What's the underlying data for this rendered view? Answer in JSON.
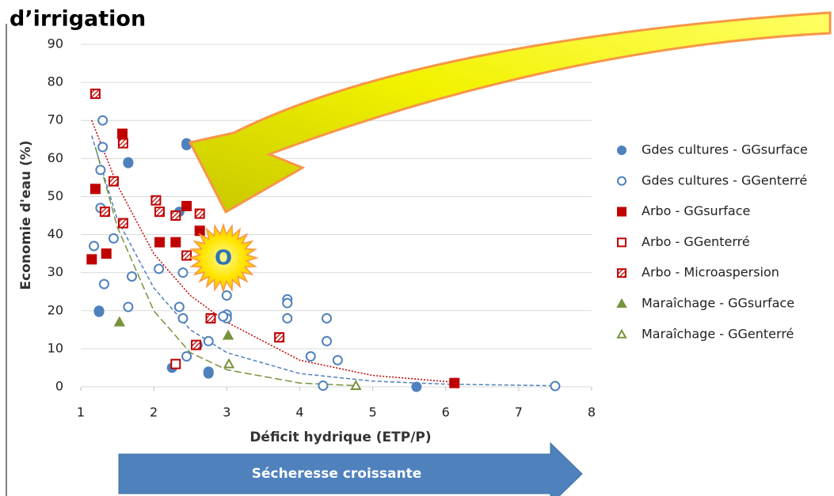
{
  "chart_data": {
    "type": "scatter",
    "title": "d’irrigation",
    "xlabel": "Déficit hydrique  (ETP/P)",
    "ylabel": "Economie d'eau (%)",
    "xlim": [
      1,
      8
    ],
    "ylim": [
      0,
      90
    ],
    "xticks": [
      1,
      2,
      3,
      4,
      5,
      6,
      7,
      8
    ],
    "yticks": [
      0,
      10,
      20,
      30,
      40,
      50,
      60,
      70,
      80,
      90
    ],
    "grid": true,
    "series": [
      {
        "name": "Gdes cultures - GGsurface",
        "color": "#4f81bd",
        "marker": "circle",
        "fill": "solid",
        "x": [
          2.45,
          2.45,
          1.65,
          1.65,
          1.25,
          1.25,
          2.25,
          2.75,
          2.75,
          5.6,
          2.35
        ],
        "values": [
          64,
          63.5,
          59,
          58.8,
          20,
          19.7,
          5,
          4,
          3.5,
          0,
          46
        ]
      },
      {
        "name": "Gdes cultures - GGenterré",
        "color": "#4f81bd",
        "marker": "circle",
        "fill": "none",
        "x": [
          1.3,
          1.3,
          1.27,
          1.27,
          1.18,
          1.32,
          1.45,
          1.65,
          1.7,
          2.07,
          2.35,
          2.4,
          2.4,
          2.45,
          2.6,
          2.75,
          3,
          3,
          3,
          2.95,
          3.83,
          3.83,
          3.83,
          4.15,
          4.37,
          4.37,
          4.52,
          4.32,
          7.5
        ],
        "values": [
          70,
          63,
          57,
          47,
          37,
          27,
          39,
          21,
          29,
          31,
          21,
          18,
          30,
          8,
          11,
          12,
          24,
          19,
          18,
          18.5,
          23,
          22,
          18,
          8,
          18,
          12,
          7,
          0.3,
          0.2
        ]
      },
      {
        "name": "Arbo - GGsurface",
        "color": "#c00000",
        "marker": "square",
        "fill": "solid",
        "x": [
          1.57,
          1.2,
          1.15,
          1.35,
          2.08,
          2.3,
          2.45,
          2.63,
          6.12
        ],
        "values": [
          66.5,
          52,
          33.5,
          35,
          38,
          38,
          47.5,
          41,
          1
        ]
      },
      {
        "name": "Arbo - GGenterré",
        "color": "#c00000",
        "marker": "square",
        "fill": "none",
        "x": [
          2.3
        ],
        "values": [
          6
        ]
      },
      {
        "name": "Arbo - Microaspersion",
        "color": "#c00000",
        "marker": "square",
        "fill": "hatch",
        "x": [
          1.2,
          1.58,
          1.45,
          1.33,
          1.58,
          2.03,
          2.08,
          2.3,
          2.63,
          2.45,
          2.78,
          2.58,
          3.72
        ],
        "values": [
          77,
          64,
          54,
          46,
          43,
          49,
          46,
          45,
          45.5,
          34.5,
          18,
          11,
          13
        ]
      },
      {
        "name": "Maraîchage - GGsurface",
        "color": "#77933c",
        "marker": "triangle",
        "fill": "solid",
        "x": [
          1.53,
          3.02
        ],
        "values": [
          17,
          13.5
        ]
      },
      {
        "name": "Maraîchage - GGenterré",
        "color": "#77933c",
        "marker": "triangle",
        "fill": "none",
        "x": [
          3.03,
          4.77
        ],
        "values": [
          6,
          0.3
        ]
      }
    ],
    "trendlines": [
      {
        "color": "#c00000",
        "style": "dotted",
        "x": [
          1.15,
          1.5,
          2,
          2.5,
          3,
          4,
          5,
          6.12
        ],
        "values": [
          70,
          53,
          35,
          24,
          17,
          7,
          3,
          1.2
        ]
      },
      {
        "color": "#4f81bd",
        "style": "dashed",
        "x": [
          1.15,
          1.5,
          2,
          2.5,
          3,
          4,
          5,
          6,
          7.5
        ],
        "values": [
          66,
          44,
          26,
          15,
          9,
          3.5,
          1.5,
          0.7,
          0.3
        ]
      },
      {
        "color": "#77933c",
        "style": "longdash",
        "x": [
          1.2,
          1.5,
          2,
          2.5,
          3,
          4,
          4.8
        ],
        "values": [
          63,
          42,
          20,
          9,
          4.5,
          1,
          0.3
        ]
      }
    ],
    "annotations": {
      "sun": "O",
      "arrow": "Sécheresse croissante"
    }
  }
}
